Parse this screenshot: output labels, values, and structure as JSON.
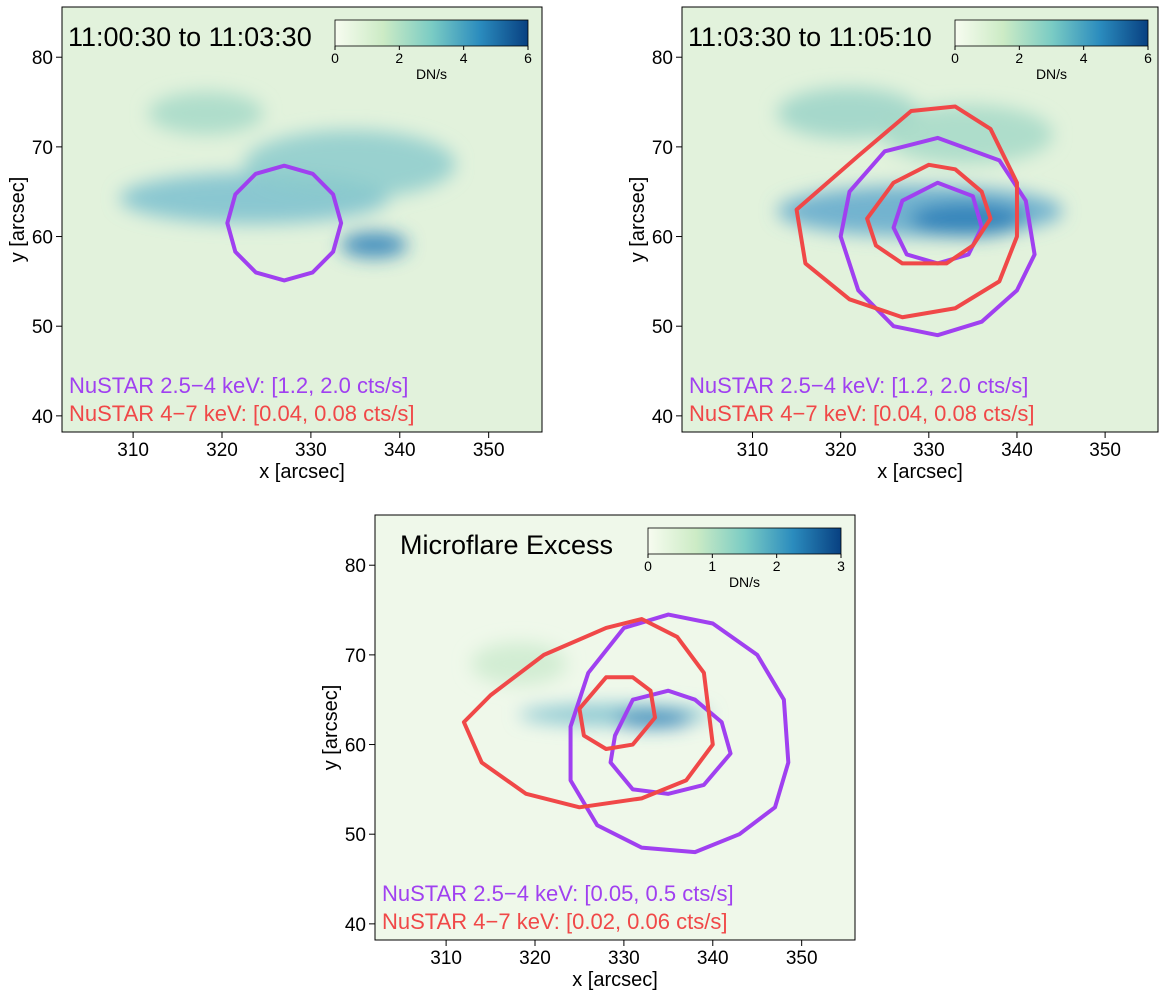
{
  "chart_data": [
    {
      "type": "heatmap",
      "title": "11:00:30 to 11:03:30",
      "xlabel": "x [arcsec]",
      "ylabel": "y [arcsec]",
      "xlim": [
        302,
        356
      ],
      "ylim": [
        38.2,
        85.6
      ],
      "xticks": [
        310,
        320,
        330,
        340,
        350
      ],
      "yticks": [
        40,
        50,
        60,
        70,
        80
      ],
      "colorbar": {
        "label": "DN/s",
        "lim": [
          0,
          6
        ],
        "ticks": [
          0,
          2,
          4,
          6
        ]
      },
      "annotations": [
        {
          "text": "NuSTAR 2.5−4 keV: [1.2, 2.0 cts/s]",
          "color": "#a040f0"
        },
        {
          "text": "NuSTAR 4−7 keV: [0.04, 0.08 cts/s]",
          "color": "#f04848"
        }
      ],
      "contours": [
        {
          "color": "#a040f0",
          "x": [
            333.4,
            332.5,
            330.2,
            327,
            323.8,
            321.5,
            320.6,
            321.5,
            323.8,
            327,
            330.2,
            332.5
          ],
          "y": [
            61.5,
            64.7,
            67.0,
            67.9,
            67.0,
            64.7,
            61.5,
            58.3,
            56.0,
            55.1,
            56.0,
            58.3
          ]
        }
      ]
    },
    {
      "type": "heatmap",
      "title": "11:03:30 to 11:05:10",
      "xlabel": "x [arcsec]",
      "ylabel": "y [arcsec]",
      "xlim": [
        302,
        356
      ],
      "ylim": [
        38.2,
        85.6
      ],
      "xticks": [
        310,
        320,
        330,
        340,
        350
      ],
      "yticks": [
        40,
        50,
        60,
        70,
        80
      ],
      "colorbar": {
        "label": "DN/s",
        "lim": [
          0,
          6
        ],
        "ticks": [
          0,
          2,
          4,
          6
        ]
      },
      "annotations": [
        {
          "text": "NuSTAR 2.5−4 keV: [1.2, 2.0 cts/s]",
          "color": "#a040f0"
        },
        {
          "text": "NuSTAR 4−7 keV: [0.04, 0.08 cts/s]",
          "color": "#f04848"
        }
      ],
      "contours": [
        {
          "color": "#a040f0",
          "x": [
            342,
            341,
            338,
            331,
            325,
            321,
            320,
            322,
            326,
            331,
            336,
            340
          ],
          "y": [
            58,
            64,
            68.5,
            71,
            69.5,
            65,
            60,
            54,
            50,
            49,
            50.5,
            54
          ]
        },
        {
          "color": "#a040f0",
          "x": [
            336,
            335,
            331,
            327,
            326,
            327.5,
            331,
            334.5
          ],
          "y": [
            61,
            64.5,
            66,
            64,
            61,
            58,
            57,
            58
          ]
        },
        {
          "color": "#f04848",
          "x": [
            340,
            340,
            337,
            333,
            328,
            322,
            315,
            316,
            321,
            327,
            333,
            338
          ],
          "y": [
            60,
            66,
            72,
            74.5,
            74,
            69,
            63,
            57,
            53,
            51,
            52,
            55
          ]
        },
        {
          "color": "#f04848",
          "x": [
            337,
            336,
            333,
            330,
            326,
            323,
            324,
            327,
            332,
            335
          ],
          "y": [
            62,
            65,
            67.5,
            68,
            66,
            62,
            59,
            57,
            57,
            59
          ]
        }
      ]
    },
    {
      "type": "heatmap",
      "title": "Microflare Excess",
      "xlabel": "x [arcsec]",
      "ylabel": "y [arcsec]",
      "xlim": [
        302,
        356
      ],
      "ylim": [
        38.2,
        85.6
      ],
      "xticks": [
        310,
        320,
        330,
        340,
        350
      ],
      "yticks": [
        40,
        50,
        60,
        70,
        80
      ],
      "colorbar": {
        "label": "DN/s",
        "lim": [
          0,
          3
        ],
        "ticks": [
          0,
          1,
          2,
          3
        ]
      },
      "annotations": [
        {
          "text": "NuSTAR 2.5−4 keV: [0.05, 0.5 cts/s]",
          "color": "#a040f0"
        },
        {
          "text": "NuSTAR 4−7 keV: [0.02, 0.06 cts/s]",
          "color": "#f04848"
        }
      ],
      "contours": [
        {
          "color": "#a040f0",
          "x": [
            348.5,
            348,
            345,
            340,
            335,
            330,
            326,
            324,
            324,
            327,
            332,
            338,
            343,
            347
          ],
          "y": [
            58,
            65,
            70,
            73.5,
            74.5,
            73,
            68,
            62,
            56,
            51,
            48.5,
            48,
            50,
            53
          ]
        },
        {
          "color": "#a040f0",
          "x": [
            342,
            341,
            338,
            335,
            331,
            329,
            328.5,
            331,
            335,
            339
          ],
          "y": [
            59,
            62.5,
            65,
            66,
            65,
            61,
            58,
            55,
            54.5,
            55.5
          ]
        },
        {
          "color": "#f04848",
          "x": [
            340,
            339.5,
            339,
            336,
            332,
            328,
            321,
            315,
            312,
            314,
            319,
            325,
            332,
            337
          ],
          "y": [
            60,
            64,
            68,
            72,
            74,
            73,
            70,
            65.5,
            62.5,
            58,
            54.5,
            53,
            54,
            56
          ]
        },
        {
          "color": "#f04848",
          "x": [
            333.5,
            333,
            331,
            328,
            325,
            325.5,
            328,
            331
          ],
          "y": [
            63,
            66,
            67.5,
            67.5,
            64,
            61,
            59.5,
            60
          ]
        }
      ]
    }
  ]
}
